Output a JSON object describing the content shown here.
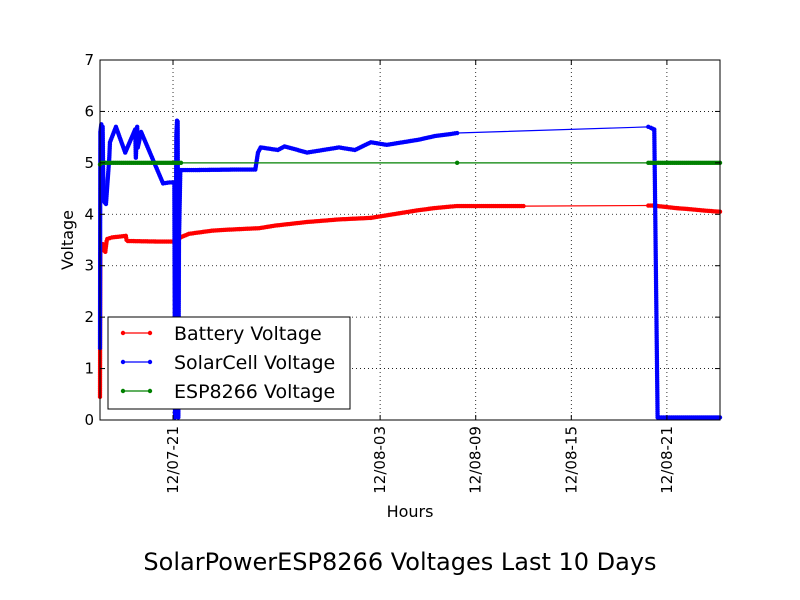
{
  "chart_data": {
    "type": "line",
    "title": "SolarPowerESP8266 Voltages Last 10 Days",
    "xlabel": "Hours",
    "ylabel": "Voltage",
    "ylim": [
      0,
      7
    ],
    "yticks": [
      0,
      1,
      2,
      3,
      4,
      5,
      6,
      7
    ],
    "x_unit": "days",
    "xlim": [
      "12/07-16 10:00",
      "12/08-24 08:00"
    ],
    "xticks": [
      {
        "label": "12/07-21",
        "x": "12/07-21 00:00"
      },
      {
        "label": "12/08-03",
        "x": "12/08-03 00:00"
      },
      {
        "label": "12/08-09",
        "x": "12/08-09 00:00"
      },
      {
        "label": "12/08-15",
        "x": "12/08-15 00:00"
      },
      {
        "label": "12/08-21",
        "x": "12/08-21 00:00"
      }
    ],
    "grid": true,
    "legend_position": "lower-left",
    "series": [
      {
        "name": "Battery Voltage",
        "color": "#ff0000",
        "points": [
          [
            "12/07-16 10:00",
            0.45
          ],
          [
            "12/07-16 10:30",
            3.25
          ],
          [
            "12/07-16 11:00",
            3.28
          ],
          [
            "12/07-16 12:00",
            3.32
          ],
          [
            "12/07-16 13:00",
            3.38
          ],
          [
            "12/07-16 14:00",
            3.42
          ],
          [
            "12/07-16 15:00",
            3.35
          ],
          [
            "12/07-16 16:00",
            3.3
          ],
          [
            "12/07-16 17:00",
            3.3
          ],
          [
            "12/07-16 18:00",
            3.27
          ],
          [
            "12/07-16 19:00",
            3.38
          ],
          [
            "12/07-16 20:00",
            3.48
          ],
          [
            "12/07-16 21:00",
            3.52
          ],
          [
            "12/07-17 04:00",
            3.55
          ],
          [
            "12/07-18 01:00",
            3.58
          ],
          [
            "12/07-18 02:00",
            3.5
          ],
          [
            "12/07-18 04:00",
            3.48
          ],
          [
            "12/07-20 00:00",
            3.47
          ],
          [
            "12/07-21 05:00",
            3.47
          ],
          [
            "12/07-21 08:00",
            3.5
          ],
          [
            "12/07-21 11:00",
            3.55
          ],
          [
            "12/07-22 00:00",
            3.62
          ],
          [
            "12/07-23 10:00",
            3.68
          ],
          [
            "12/07-24 10:00",
            3.7
          ],
          [
            "12/07-26 10:00",
            3.73
          ],
          [
            "12/07-27 10:00",
            3.78
          ],
          [
            "12/07-29 10:00",
            3.85
          ],
          [
            "12/07-31 10:00",
            3.9
          ],
          [
            "12/08-02 10:00",
            3.93
          ],
          [
            "12/08-04 10:00",
            4.03
          ],
          [
            "12/08-05 10:00",
            4.08
          ],
          [
            "12/08-06 10:00",
            4.12
          ],
          [
            "12/08-07 10:00",
            4.15
          ],
          [
            "12/08-07 20:00",
            4.16
          ],
          [
            "12/08-09 15:00",
            4.16
          ],
          [
            "12/08-12 00:00",
            4.16
          ],
          [
            "12/08-19 20:00",
            4.17
          ],
          [
            "12/08-20 05:00",
            4.17
          ],
          [
            "12/08-20 10:00",
            4.16
          ],
          [
            "12/08-21 00:00",
            4.14
          ],
          [
            "12/08-21 14:00",
            4.12
          ],
          [
            "12/08-22 10:00",
            4.1
          ],
          [
            "12/08-23 10:00",
            4.07
          ],
          [
            "12/08-24 08:00",
            4.05
          ]
        ]
      },
      {
        "name": "SolarCell Voltage",
        "color": "#0000ff",
        "points": [
          [
            "12/07-16 10:00",
            1.4
          ],
          [
            "12/07-16 10:30",
            5.6
          ],
          [
            "12/07-16 12:00",
            5.75
          ],
          [
            "12/07-16 12:30",
            5.5
          ],
          [
            "12/07-16 14:00",
            5.7
          ],
          [
            "12/07-16 15:00",
            4.55
          ],
          [
            "12/07-16 16:00",
            4.25
          ],
          [
            "12/07-16 19:00",
            4.2
          ],
          [
            "12/07-17 00:00",
            5.1
          ],
          [
            "12/07-17 01:00",
            5.4
          ],
          [
            "12/07-17 10:00",
            5.7
          ],
          [
            "12/07-18 00:00",
            5.2
          ],
          [
            "12/07-18 15:00",
            5.65
          ],
          [
            "12/07-18 16:00",
            5.1
          ],
          [
            "12/07-18 18:00",
            5.7
          ],
          [
            "12/07-18 19:00",
            5.3
          ],
          [
            "12/07-19 00:00",
            5.6
          ],
          [
            "12/07-20 09:00",
            4.6
          ],
          [
            "12/07-20 19:00",
            4.62
          ],
          [
            "12/07-21 02:00",
            4.62
          ],
          [
            "12/07-21 03:00",
            0.05
          ],
          [
            "12/07-21 05:00",
            5.55
          ],
          [
            "12/07-21 06:00",
            5.82
          ],
          [
            "12/07-21 07:00",
            5.8
          ],
          [
            "12/07-21 08:00",
            0.05
          ],
          [
            "12/07-21 09:00",
            3.5
          ],
          [
            "12/07-21 11:00",
            4.85
          ],
          [
            "12/07-21 12:00",
            4.86
          ],
          [
            "12/07-22 10:00",
            4.86
          ],
          [
            "12/07-25 00:00",
            4.87
          ],
          [
            "12/07-26 04:00",
            4.87
          ],
          [
            "12/07-26 08:00",
            5.2
          ],
          [
            "12/07-26 12:00",
            5.3
          ],
          [
            "12/07-27 14:00",
            5.25
          ],
          [
            "12/07-28 00:00",
            5.32
          ],
          [
            "12/07-29 10:00",
            5.2
          ],
          [
            "12/07-30 10:00",
            5.25
          ],
          [
            "12/07-31 10:00",
            5.3
          ],
          [
            "12/08-01 10:00",
            5.25
          ],
          [
            "12/08-02 10:00",
            5.4
          ],
          [
            "12/08-03 10:00",
            5.35
          ],
          [
            "12/08-04 10:00",
            5.4
          ],
          [
            "12/08-05 10:00",
            5.45
          ],
          [
            "12/08-06 10:00",
            5.52
          ],
          [
            "12/08-07 10:00",
            5.56
          ],
          [
            "12/08-07 20:00",
            5.58
          ],
          [
            "12/08-19 20:00",
            5.7
          ],
          [
            "12/08-20 00:00",
            5.68
          ],
          [
            "12/08-20 05:00",
            5.65
          ],
          [
            "12/08-20 10:00",
            0.05
          ],
          [
            "12/08-24 08:00",
            0.05
          ]
        ]
      },
      {
        "name": "ESP8266 Voltage",
        "color": "#008000",
        "points": [
          [
            "12/07-16 10:00",
            4.97
          ],
          [
            "12/07-16 12:00",
            5.0
          ],
          [
            "12/07-21 12:00",
            5.0
          ],
          [
            "12/08-07 20:00",
            5.0
          ],
          [
            "12/08-19 20:00",
            5.0
          ],
          [
            "12/08-24 08:00",
            5.0
          ]
        ]
      }
    ]
  }
}
